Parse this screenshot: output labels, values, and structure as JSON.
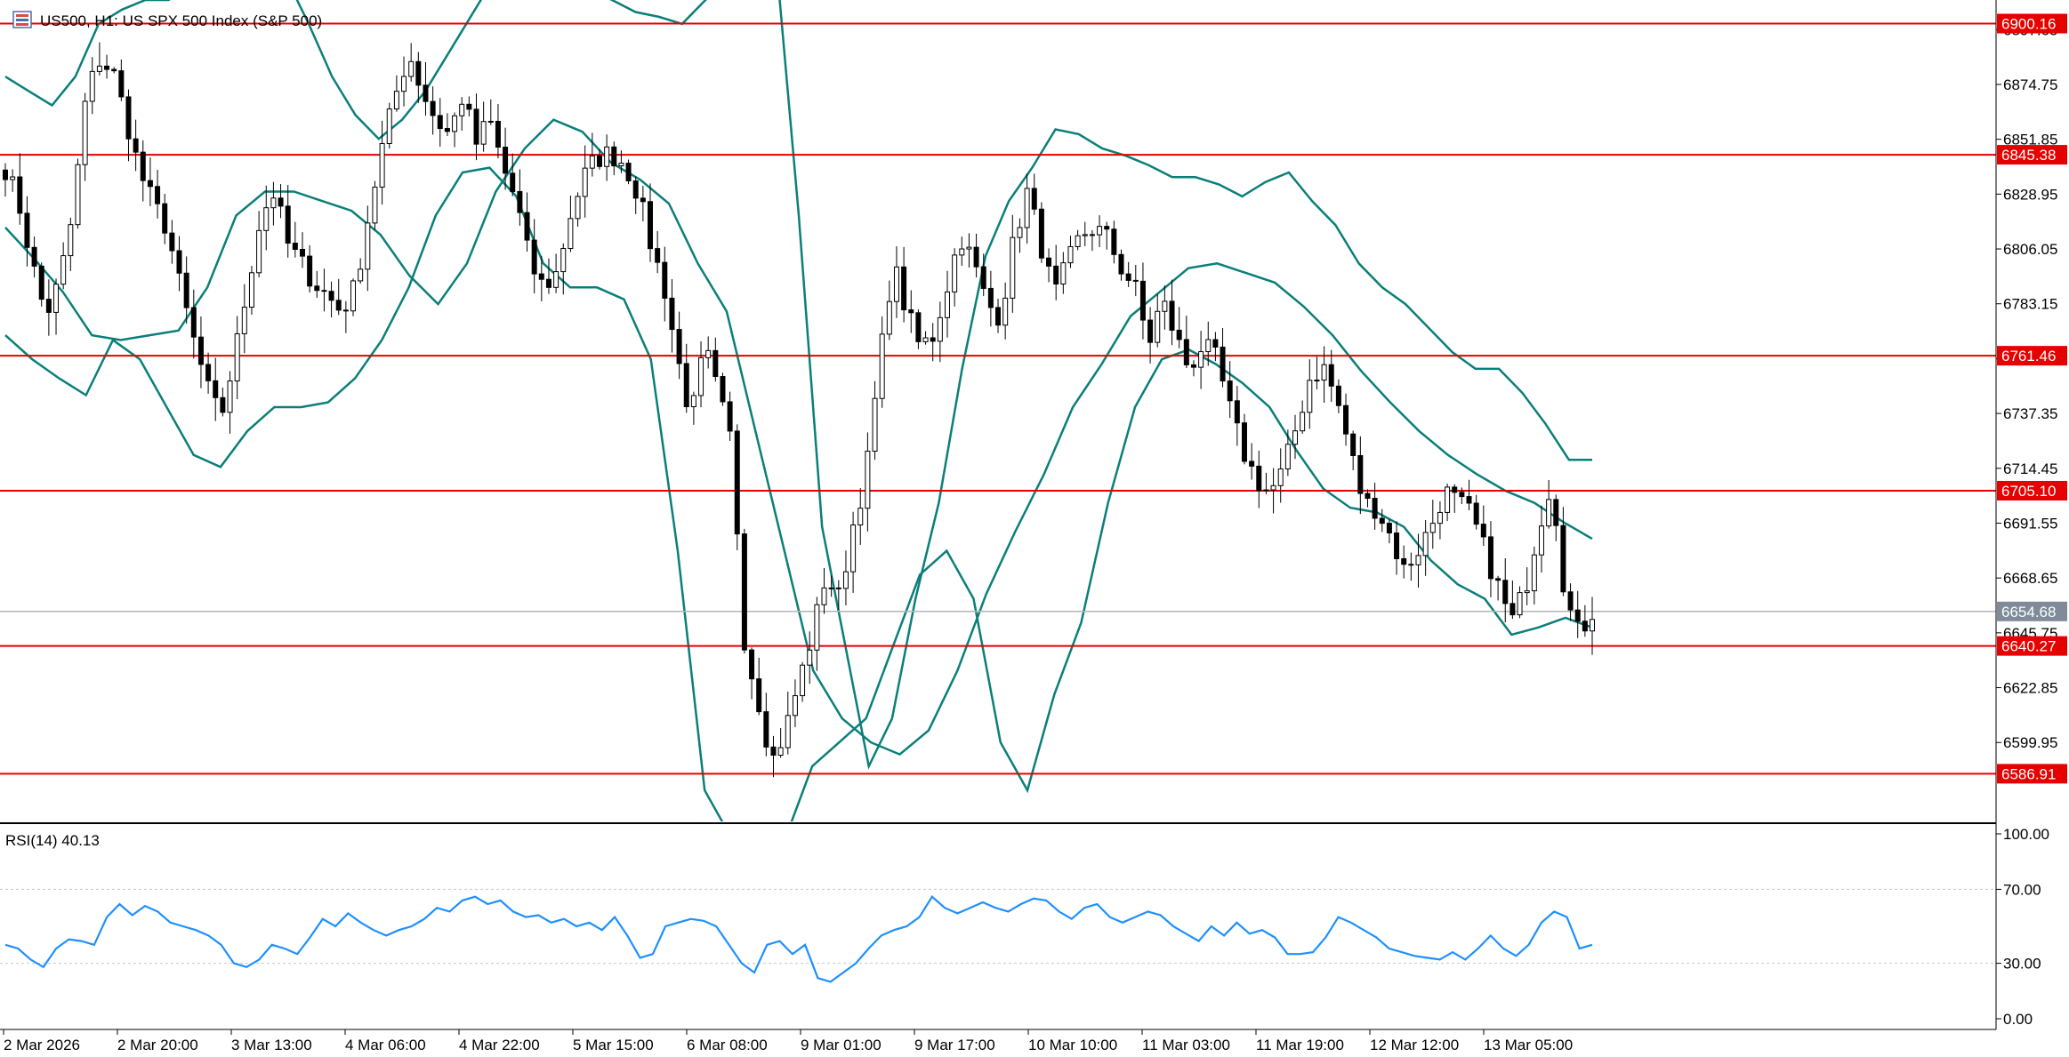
{
  "header": {
    "symbol_title": "US500, H1:  US SPX 500 Index (S&P 500)",
    "symbol_icon": "candles-icon"
  },
  "colors": {
    "background": "#ffffff",
    "frame": "#000000",
    "candle_up_fill": "#ffffff",
    "candle_down_fill": "#000000",
    "candle_outline": "#000000",
    "bollinger": "#0a7f79",
    "level_line": "#e60000",
    "level_tag": "#e60000",
    "current_price_line": "#b4b4b4",
    "current_price_tag": "#7f8b99",
    "rsi_line": "#1e90ff",
    "rsi_level": "#c8c8c8"
  },
  "chart_data": [
    {
      "type": "candlestick",
      "timeframe": "H1",
      "indicators": [
        "Bollinger Bands"
      ],
      "ylim": [
        6567,
        6910
      ],
      "y_ticks": [
        "6897.65",
        "6874.75",
        "6851.85",
        "6828.95",
        "6806.05",
        "6783.15",
        "6760.25",
        "6737.35",
        "6714.45",
        "6691.55",
        "6668.65",
        "6645.75",
        "6622.85",
        "6599.95"
      ],
      "x_ticks": [
        "2 Mar 2026",
        "2 Mar 20:00",
        "3 Mar 13:00",
        "4 Mar 06:00",
        "4 Mar 22:00",
        "5 Mar 15:00",
        "6 Mar 08:00",
        "9 Mar 01:00",
        "9 Mar 17:00",
        "10 Mar 10:00",
        "11 Mar 03:00",
        "11 Mar 19:00",
        "12 Mar 12:00",
        "13 Mar 05:00"
      ],
      "horizontal_levels": [
        {
          "value": 6900.16,
          "label": "6900.16"
        },
        {
          "value": 6845.38,
          "label": "6845.38"
        },
        {
          "value": 6761.46,
          "label": "6761.46"
        },
        {
          "value": 6705.1,
          "label": "6705.10"
        },
        {
          "value": 6640.27,
          "label": "6640.27"
        },
        {
          "value": 6586.91,
          "label": "6586.91"
        }
      ],
      "current_price": {
        "value": 6654.68,
        "label": "6654.68"
      },
      "price_anchors": [
        6840,
        6825,
        6800,
        6778,
        6792,
        6820,
        6870,
        6885,
        6880,
        6860,
        6838,
        6825,
        6815,
        6790,
        6768,
        6748,
        6735,
        6760,
        6790,
        6820,
        6830,
        6808,
        6800,
        6792,
        6786,
        6780,
        6790,
        6820,
        6848,
        6870,
        6888,
        6872,
        6860,
        6854,
        6870,
        6850,
        6860,
        6840,
        6826,
        6800,
        6790,
        6796,
        6820,
        6836,
        6844,
        6846,
        6842,
        6830,
        6808,
        6790,
        6760,
        6735,
        6765,
        6745,
        6725,
        6640,
        6618,
        6592,
        6605,
        6625,
        6645,
        6670,
        6660,
        6690,
        6712,
        6758,
        6800,
        6780,
        6765,
        6770,
        6790,
        6812,
        6800,
        6783,
        6778,
        6810,
        6830,
        6808,
        6786,
        6800,
        6812,
        6815,
        6810,
        6798,
        6790,
        6766,
        6785,
        6770,
        6756,
        6766,
        6760,
        6740,
        6722,
        6710,
        6704,
        6713,
        6732,
        6752,
        6757,
        6743,
        6722,
        6700,
        6698,
        6686,
        6672,
        6680,
        6690,
        6705,
        6700,
        6695,
        6680,
        6665,
        6650,
        6664,
        6690,
        6710,
        6660,
        6645,
        6655
      ],
      "bollinger": {
        "upper_anchors": [
          6878,
          6872,
          6866,
          6878,
          6900,
          6906,
          6910,
          6910,
          6918,
          6932,
          6946,
          6936,
          6920,
          6900,
          6878,
          6862,
          6852,
          6860,
          6872,
          6888,
          6904,
          6920,
          6930,
          6935,
          6930,
          6915,
          6910,
          6905,
          6903,
          6900,
          6910,
          6920,
          6940,
          6930,
          6820,
          6690,
          6640,
          6590,
          6610,
          6660,
          6700,
          6756,
          6803,
          6826,
          6840,
          6856,
          6854,
          6848,
          6845,
          6841,
          6836,
          6836,
          6833,
          6828,
          6834,
          6838,
          6826,
          6816,
          6800,
          6790,
          6783,
          6773,
          6763,
          6756,
          6756,
          6746,
          6733,
          6718,
          6718
        ],
        "middle_anchors": [
          6815,
          6802,
          6788,
          6770,
          6768,
          6770,
          6772,
          6790,
          6820,
          6830,
          6830,
          6826,
          6822,
          6812,
          6795,
          6783,
          6800,
          6830,
          6848,
          6860,
          6855,
          6842,
          6835,
          6825,
          6800,
          6780,
          6730,
          6680,
          6630,
          6610,
          6600,
          6595,
          6605,
          6630,
          6662,
          6688,
          6712,
          6740,
          6758,
          6778,
          6788,
          6798,
          6800,
          6796,
          6792,
          6782,
          6770,
          6755,
          6742,
          6730,
          6720,
          6712,
          6705,
          6700,
          6692,
          6685
        ],
        "lower_anchors": [
          6770,
          6760,
          6752,
          6745,
          6768,
          6760,
          6740,
          6720,
          6715,
          6730,
          6740,
          6740,
          6742,
          6752,
          6768,
          6790,
          6820,
          6838,
          6840,
          6828,
          6800,
          6790,
          6790,
          6785,
          6760,
          6680,
          6580,
          6560,
          6540,
          6560,
          6590,
          6600,
          6610,
          6640,
          6670,
          6680,
          6660,
          6600,
          6580,
          6620,
          6650,
          6700,
          6740,
          6760,
          6764,
          6758,
          6750,
          6740,
          6722,
          6706,
          6698,
          6696,
          6690,
          6676,
          6666,
          6660,
          6645,
          6648,
          6652,
          6648
        ]
      }
    },
    {
      "type": "line",
      "title": "RSI(14) 40.13",
      "ylim": [
        0,
        100
      ],
      "y_ticks": [
        "100.00",
        "70.00",
        "30.00",
        "0.00"
      ],
      "levels": [
        70,
        30
      ],
      "series": [
        {
          "values": [
            40,
            38,
            32,
            28,
            38,
            43,
            42,
            40,
            55,
            62,
            56,
            61,
            58,
            52,
            50,
            48,
            45,
            40,
            30,
            28,
            32,
            40,
            38,
            35,
            44,
            54,
            50,
            57,
            52,
            48,
            45,
            48,
            50,
            54,
            60,
            58,
            64,
            66,
            62,
            64,
            58,
            55,
            56,
            52,
            54,
            50,
            52,
            48,
            55,
            45,
            33,
            35,
            50,
            52,
            54,
            53,
            50,
            40,
            30,
            25,
            40,
            42,
            35,
            40,
            22,
            20,
            25,
            30,
            38,
            45,
            48,
            50,
            55,
            66,
            60,
            57,
            60,
            63,
            60,
            58,
            62,
            65,
            64,
            58,
            54,
            60,
            62,
            55,
            52,
            55,
            58,
            56,
            50,
            46,
            42,
            50,
            45,
            52,
            46,
            48,
            44,
            35,
            35,
            36,
            44,
            55,
            52,
            48,
            44,
            38,
            36,
            34,
            33,
            32,
            36,
            32,
            38,
            45,
            38,
            34,
            40,
            52,
            58,
            55,
            38,
            40
          ]
        }
      ]
    }
  ]
}
